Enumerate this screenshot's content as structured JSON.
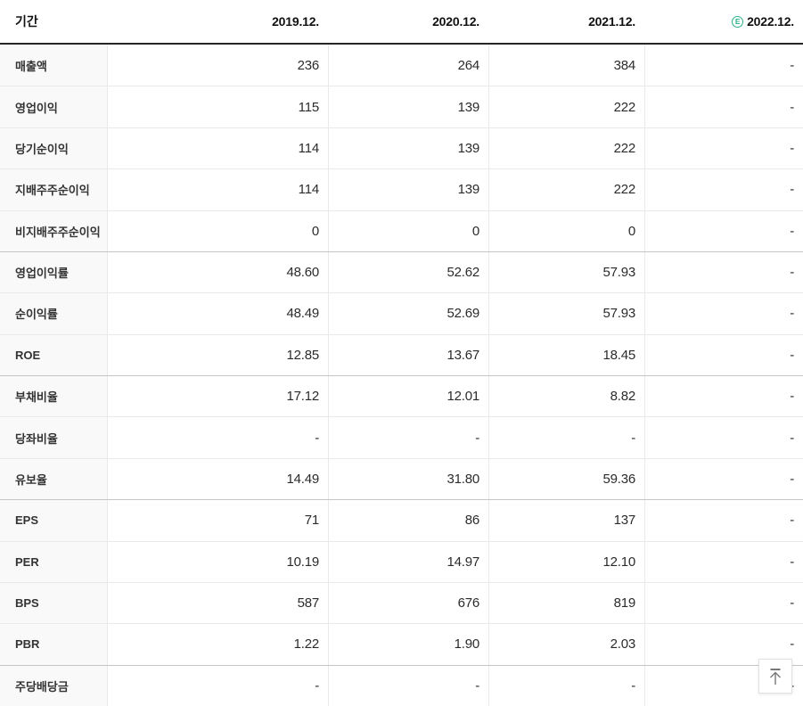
{
  "table": {
    "header": {
      "period_label": "기간",
      "columns": [
        "2019.12.",
        "2020.12.",
        "2021.12.",
        "2022.12."
      ],
      "estimate_badge": "E"
    },
    "rows": [
      {
        "label": "매출액",
        "values": [
          "236",
          "264",
          "384",
          "-"
        ],
        "group_start": false
      },
      {
        "label": "영업이익",
        "values": [
          "115",
          "139",
          "222",
          "-"
        ],
        "group_start": false
      },
      {
        "label": "당기순이익",
        "values": [
          "114",
          "139",
          "222",
          "-"
        ],
        "group_start": false
      },
      {
        "label": "지배주주순이익",
        "values": [
          "114",
          "139",
          "222",
          "-"
        ],
        "group_start": false
      },
      {
        "label": "비지배주주순이익",
        "values": [
          "0",
          "0",
          "0",
          "-"
        ],
        "group_start": false
      },
      {
        "label": "영업이익률",
        "values": [
          "48.60",
          "52.62",
          "57.93",
          "-"
        ],
        "group_start": true
      },
      {
        "label": "순이익률",
        "values": [
          "48.49",
          "52.69",
          "57.93",
          "-"
        ],
        "group_start": false
      },
      {
        "label": "ROE",
        "values": [
          "12.85",
          "13.67",
          "18.45",
          "-"
        ],
        "group_start": false
      },
      {
        "label": "부채비율",
        "values": [
          "17.12",
          "12.01",
          "8.82",
          "-"
        ],
        "group_start": true
      },
      {
        "label": "당좌비율",
        "values": [
          "-",
          "-",
          "-",
          "-"
        ],
        "group_start": false
      },
      {
        "label": "유보율",
        "values": [
          "14.49",
          "31.80",
          "59.36",
          "-"
        ],
        "group_start": false
      },
      {
        "label": "EPS",
        "values": [
          "71",
          "86",
          "137",
          "-"
        ],
        "group_start": true
      },
      {
        "label": "PER",
        "values": [
          "10.19",
          "14.97",
          "12.10",
          "-"
        ],
        "group_start": false
      },
      {
        "label": "BPS",
        "values": [
          "587",
          "676",
          "819",
          "-"
        ],
        "group_start": false
      },
      {
        "label": "PBR",
        "values": [
          "1.22",
          "1.90",
          "2.03",
          "-"
        ],
        "group_start": false
      },
      {
        "label": "주당배당금",
        "values": [
          "-",
          "-",
          "-",
          "-"
        ],
        "group_start": true
      }
    ]
  },
  "scroll_top_button": {
    "icon_name": "arrow-up-to-top-icon"
  },
  "colors": {
    "estimate_badge": "#2ab08c",
    "header_border": "#262626",
    "row_border": "#e9e9e9",
    "group_border": "#c5c5c5",
    "label_bg": "#f9f9f9"
  }
}
